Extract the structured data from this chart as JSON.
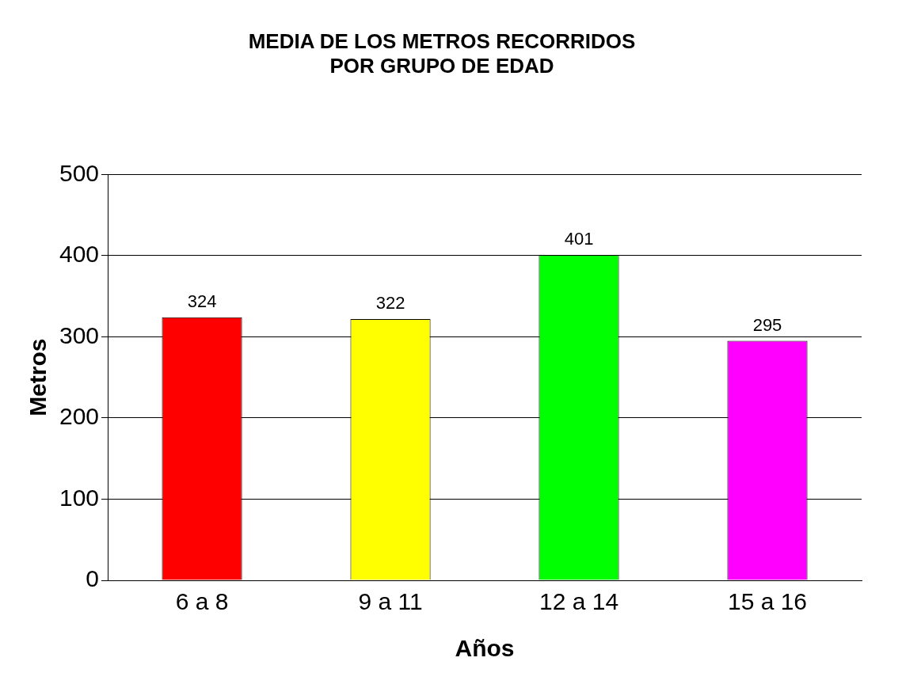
{
  "chart_data": {
    "type": "bar",
    "title": "MEDIA DE LOS METROS RECORRIDOS\nPOR GRUPO DE EDAD",
    "xlabel": "Años",
    "ylabel": "Metros",
    "categories": [
      "6 a 8",
      "9 a 11",
      "12 a 14",
      "15 a 16"
    ],
    "values": [
      324,
      322,
      401,
      295
    ],
    "colors": [
      "#ff0000",
      "#ffff00",
      "#00ff00",
      "#ff00ff"
    ],
    "ylim": [
      0,
      500
    ],
    "yticks": [
      0,
      100,
      200,
      300,
      400,
      500
    ],
    "grid": "y",
    "data_labels": true,
    "legend": false
  }
}
